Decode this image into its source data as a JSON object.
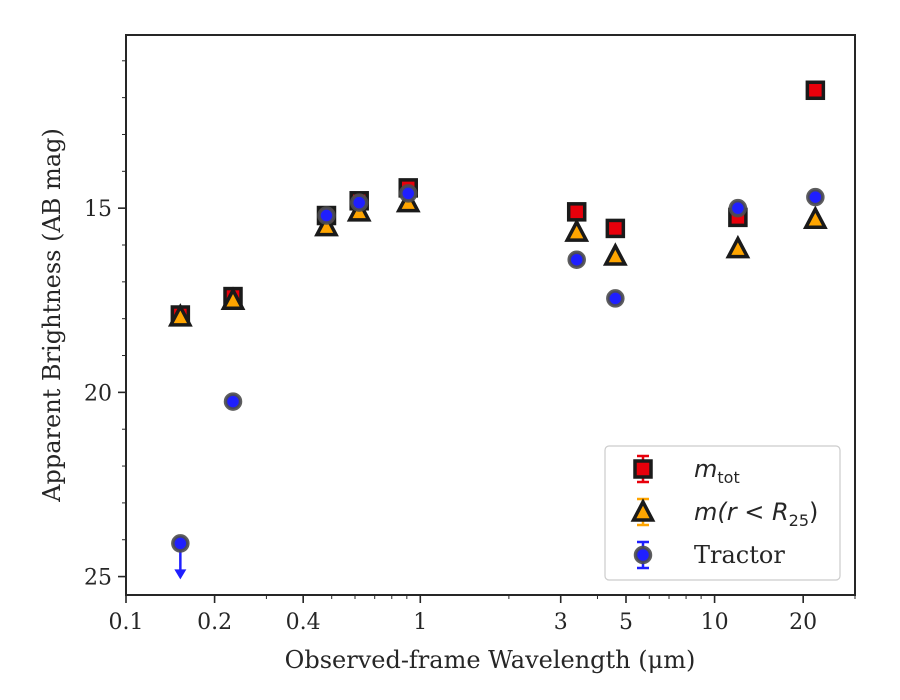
{
  "chart_data": {
    "type": "scatter",
    "xlabel": "Observed-frame Wavelength (μm)",
    "ylabel": "Apparent Brightness (AB mag)",
    "xscale": "log",
    "xlim": [
      0.1,
      30
    ],
    "ylim": [
      25.5,
      10.3
    ],
    "y_inverted": true,
    "xticks": [
      {
        "value": 0.1,
        "label": "0.1"
      },
      {
        "value": 0.2,
        "label": "0.2"
      },
      {
        "value": 0.4,
        "label": "0.4"
      },
      {
        "value": 1,
        "label": "1"
      },
      {
        "value": 3,
        "label": "3"
      },
      {
        "value": 5,
        "label": "5"
      },
      {
        "value": 10,
        "label": "10"
      },
      {
        "value": 20,
        "label": "20"
      }
    ],
    "yticks": [
      {
        "value": 15,
        "label": "15"
      },
      {
        "value": 20,
        "label": "20"
      },
      {
        "value": 25,
        "label": "25"
      }
    ],
    "grid": false,
    "legend_position": "lower-right",
    "series": [
      {
        "name": "m_tot",
        "legend_main": "m",
        "legend_sub": "tot",
        "legend_rest": "",
        "marker": "square",
        "color": "#e8000b",
        "edge_color": "#1a1a1a",
        "points": [
          {
            "x": 0.153,
            "y": 17.9
          },
          {
            "x": 0.231,
            "y": 17.4
          },
          {
            "x": 0.48,
            "y": 15.2
          },
          {
            "x": 0.62,
            "y": 14.8
          },
          {
            "x": 0.91,
            "y": 14.45
          },
          {
            "x": 3.4,
            "y": 15.1
          },
          {
            "x": 4.6,
            "y": 15.55
          },
          {
            "x": 12.0,
            "y": 15.25
          },
          {
            "x": 22.0,
            "y": 11.8
          }
        ]
      },
      {
        "name": "m(r < R25)",
        "legend_main": "m(r < R",
        "legend_sub": "25",
        "legend_rest": ")",
        "marker": "triangle",
        "color": "#ffa500",
        "edge_color": "#1a1a1a",
        "points": [
          {
            "x": 0.153,
            "y": 17.95
          },
          {
            "x": 0.231,
            "y": 17.5
          },
          {
            "x": 0.48,
            "y": 15.5
          },
          {
            "x": 0.62,
            "y": 15.1
          },
          {
            "x": 0.91,
            "y": 14.85
          },
          {
            "x": 3.4,
            "y": 15.65
          },
          {
            "x": 4.6,
            "y": 16.3
          },
          {
            "x": 12.0,
            "y": 16.1
          },
          {
            "x": 22.0,
            "y": 15.3
          }
        ]
      },
      {
        "name": "Tractor",
        "legend_main": "Tractor",
        "legend_sub": "",
        "legend_rest": "",
        "marker": "circle",
        "color": "#1f1fff",
        "edge_color": "#4d4d4d",
        "points": [
          {
            "x": 0.153,
            "y": 24.1,
            "upper_limit": true
          },
          {
            "x": 0.231,
            "y": 20.25
          },
          {
            "x": 0.48,
            "y": 15.2
          },
          {
            "x": 0.62,
            "y": 14.85
          },
          {
            "x": 0.91,
            "y": 14.6
          },
          {
            "x": 3.4,
            "y": 16.4
          },
          {
            "x": 4.6,
            "y": 17.45
          },
          {
            "x": 12.0,
            "y": 15.0
          },
          {
            "x": 22.0,
            "y": 14.7
          }
        ]
      }
    ]
  }
}
